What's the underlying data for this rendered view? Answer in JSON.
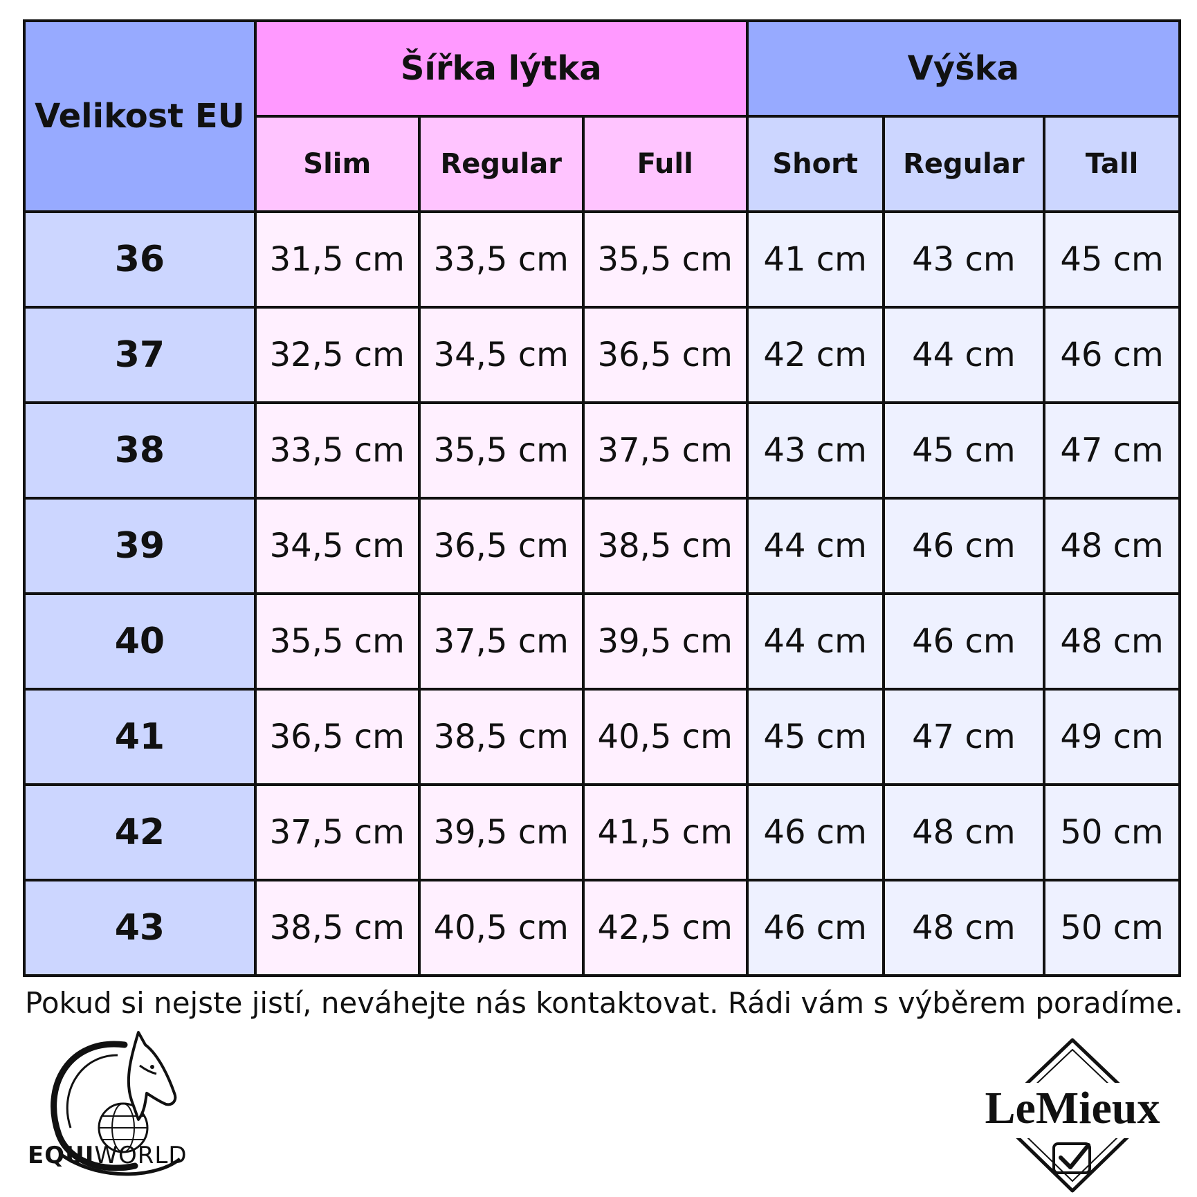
{
  "headers": {
    "size_label": "Velikost EU",
    "calf_group": "Šířka lýtka",
    "height_group": "Výška",
    "calf_cols": [
      "Slim",
      "Regular",
      "Full"
    ],
    "height_cols": [
      "Short",
      "Regular",
      "Tall"
    ]
  },
  "rows": [
    {
      "size": "36",
      "calf": [
        "31,5 cm",
        "33,5 cm",
        "35,5 cm"
      ],
      "height": [
        "41 cm",
        "43 cm",
        "45 cm"
      ]
    },
    {
      "size": "37",
      "calf": [
        "32,5 cm",
        "34,5 cm",
        "36,5 cm"
      ],
      "height": [
        "42 cm",
        "44 cm",
        "46 cm"
      ]
    },
    {
      "size": "38",
      "calf": [
        "33,5 cm",
        "35,5 cm",
        "37,5 cm"
      ],
      "height": [
        "43 cm",
        "45 cm",
        "47 cm"
      ]
    },
    {
      "size": "39",
      "calf": [
        "34,5 cm",
        "36,5 cm",
        "38,5 cm"
      ],
      "height": [
        "44 cm",
        "46 cm",
        "48 cm"
      ]
    },
    {
      "size": "40",
      "calf": [
        "35,5 cm",
        "37,5 cm",
        "39,5 cm"
      ],
      "height": [
        "44 cm",
        "46 cm",
        "48 cm"
      ]
    },
    {
      "size": "41",
      "calf": [
        "36,5 cm",
        "38,5 cm",
        "40,5 cm"
      ],
      "height": [
        "45 cm",
        "47 cm",
        "49 cm"
      ]
    },
    {
      "size": "42",
      "calf": [
        "37,5 cm",
        "39,5 cm",
        "41,5 cm"
      ],
      "height": [
        "46 cm",
        "48 cm",
        "50 cm"
      ]
    },
    {
      "size": "43",
      "calf": [
        "38,5 cm",
        "40,5 cm",
        "42,5 cm"
      ],
      "height": [
        "46 cm",
        "48 cm",
        "50 cm"
      ]
    }
  ],
  "footnote": "Pokud si nejste jistí, neváhejte nás kontaktovat. Rádi vám s výběrem poradíme.",
  "logos": {
    "equiworld_bold": "EQUI",
    "equiworld_light": "WORLD",
    "lemieux": "LeMieux"
  },
  "colors": {
    "size_header": "#97aaff",
    "calf_header": "#ff99ff",
    "calf_sub": "#ffc4ff",
    "calf_cell": "#fff0ff",
    "height_header": "#97aaff",
    "height_sub": "#ccd6ff",
    "height_cell": "#eef1ff",
    "size_cell": "#ccd6ff"
  }
}
